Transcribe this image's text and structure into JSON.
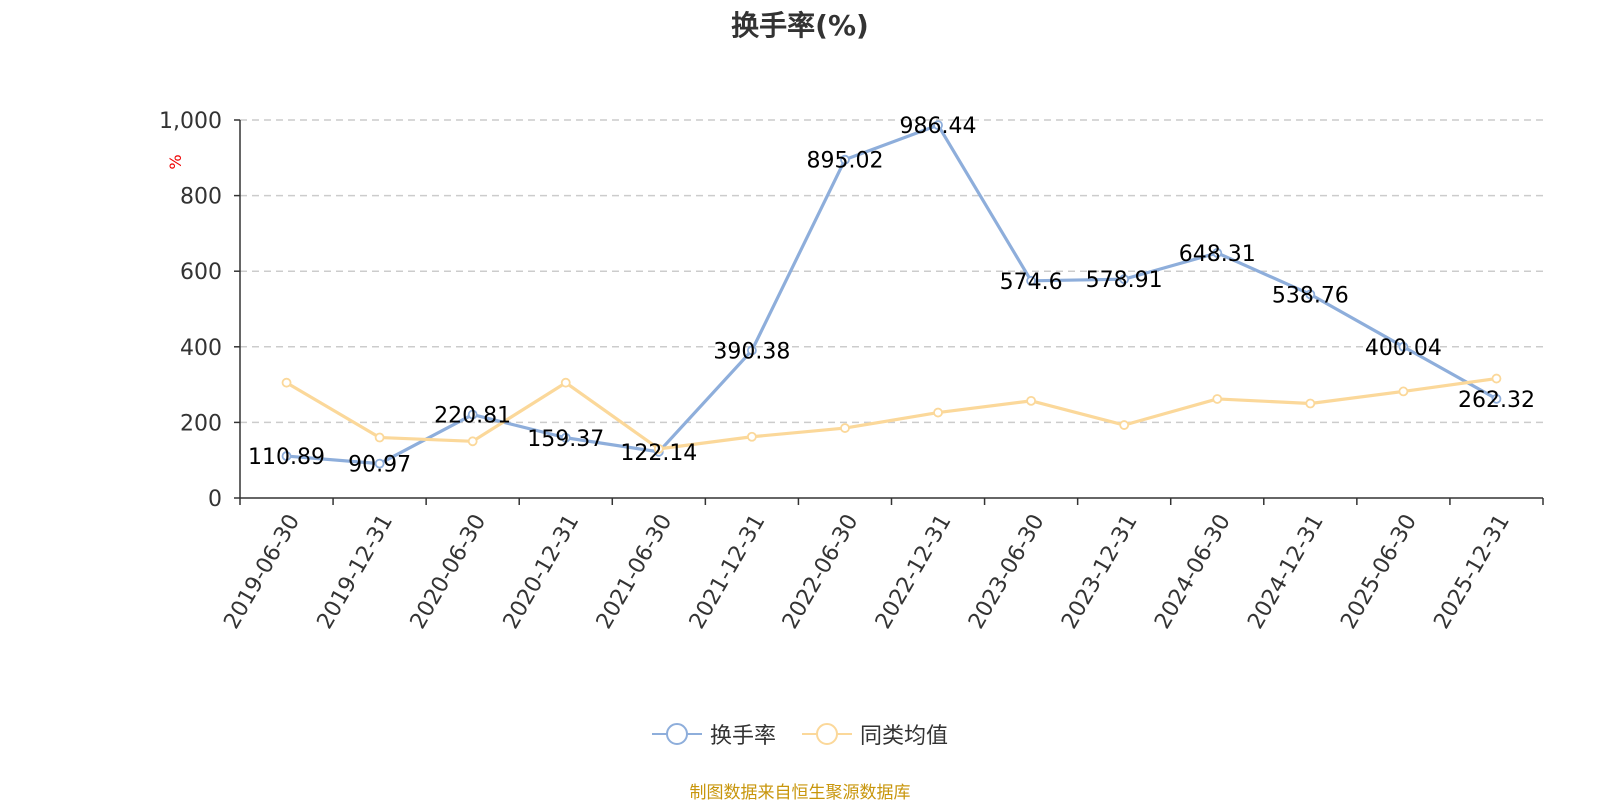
{
  "colors": {
    "series1": "#8eaedb",
    "series2": "#fbd89a",
    "grid": "#cccccc",
    "axis": "#333333",
    "unit": "#ee0000",
    "source": "#c8960c"
  },
  "footer": {
    "source": "制图数据来自恒生聚源数据库"
  },
  "chart_data": {
    "type": "line",
    "title": "换手率(%)",
    "ylabel": "%",
    "xlabel": "",
    "ylim": [
      0,
      1000
    ],
    "yticks": [
      0,
      200,
      400,
      600,
      800,
      1000
    ],
    "ytick_labels": [
      "0",
      "200",
      "400",
      "600",
      "800",
      "1,000"
    ],
    "grid": true,
    "legend_position": "bottom",
    "categories": [
      "2019-06-30",
      "2019-12-31",
      "2020-06-30",
      "2020-12-31",
      "2021-06-30",
      "2021-12-31",
      "2022-06-30",
      "2022-12-31",
      "2023-06-30",
      "2023-12-31",
      "2024-06-30",
      "2024-12-31",
      "2025-06-30",
      "2025-12-31"
    ],
    "series": [
      {
        "name": "换手率",
        "color": "#8eaedb",
        "show_labels": true,
        "values": [
          110.89,
          90.97,
          220.81,
          159.37,
          122.14,
          390.38,
          895.02,
          986.44,
          574.6,
          578.91,
          648.31,
          538.76,
          400.04,
          262.32
        ],
        "labels": [
          "110.89",
          "90.97",
          "220.81",
          "159.37",
          "122.14",
          "390.38",
          "895.02",
          "986.44",
          "574.6",
          "578.91",
          "648.31",
          "538.76",
          "400.04",
          "262.32"
        ]
      },
      {
        "name": "同类均值",
        "color": "#fbd89a",
        "show_labels": false,
        "values": [
          305,
          160,
          150,
          305,
          130,
          162,
          185,
          226,
          257,
          193,
          262,
          250,
          282,
          316
        ]
      }
    ]
  }
}
